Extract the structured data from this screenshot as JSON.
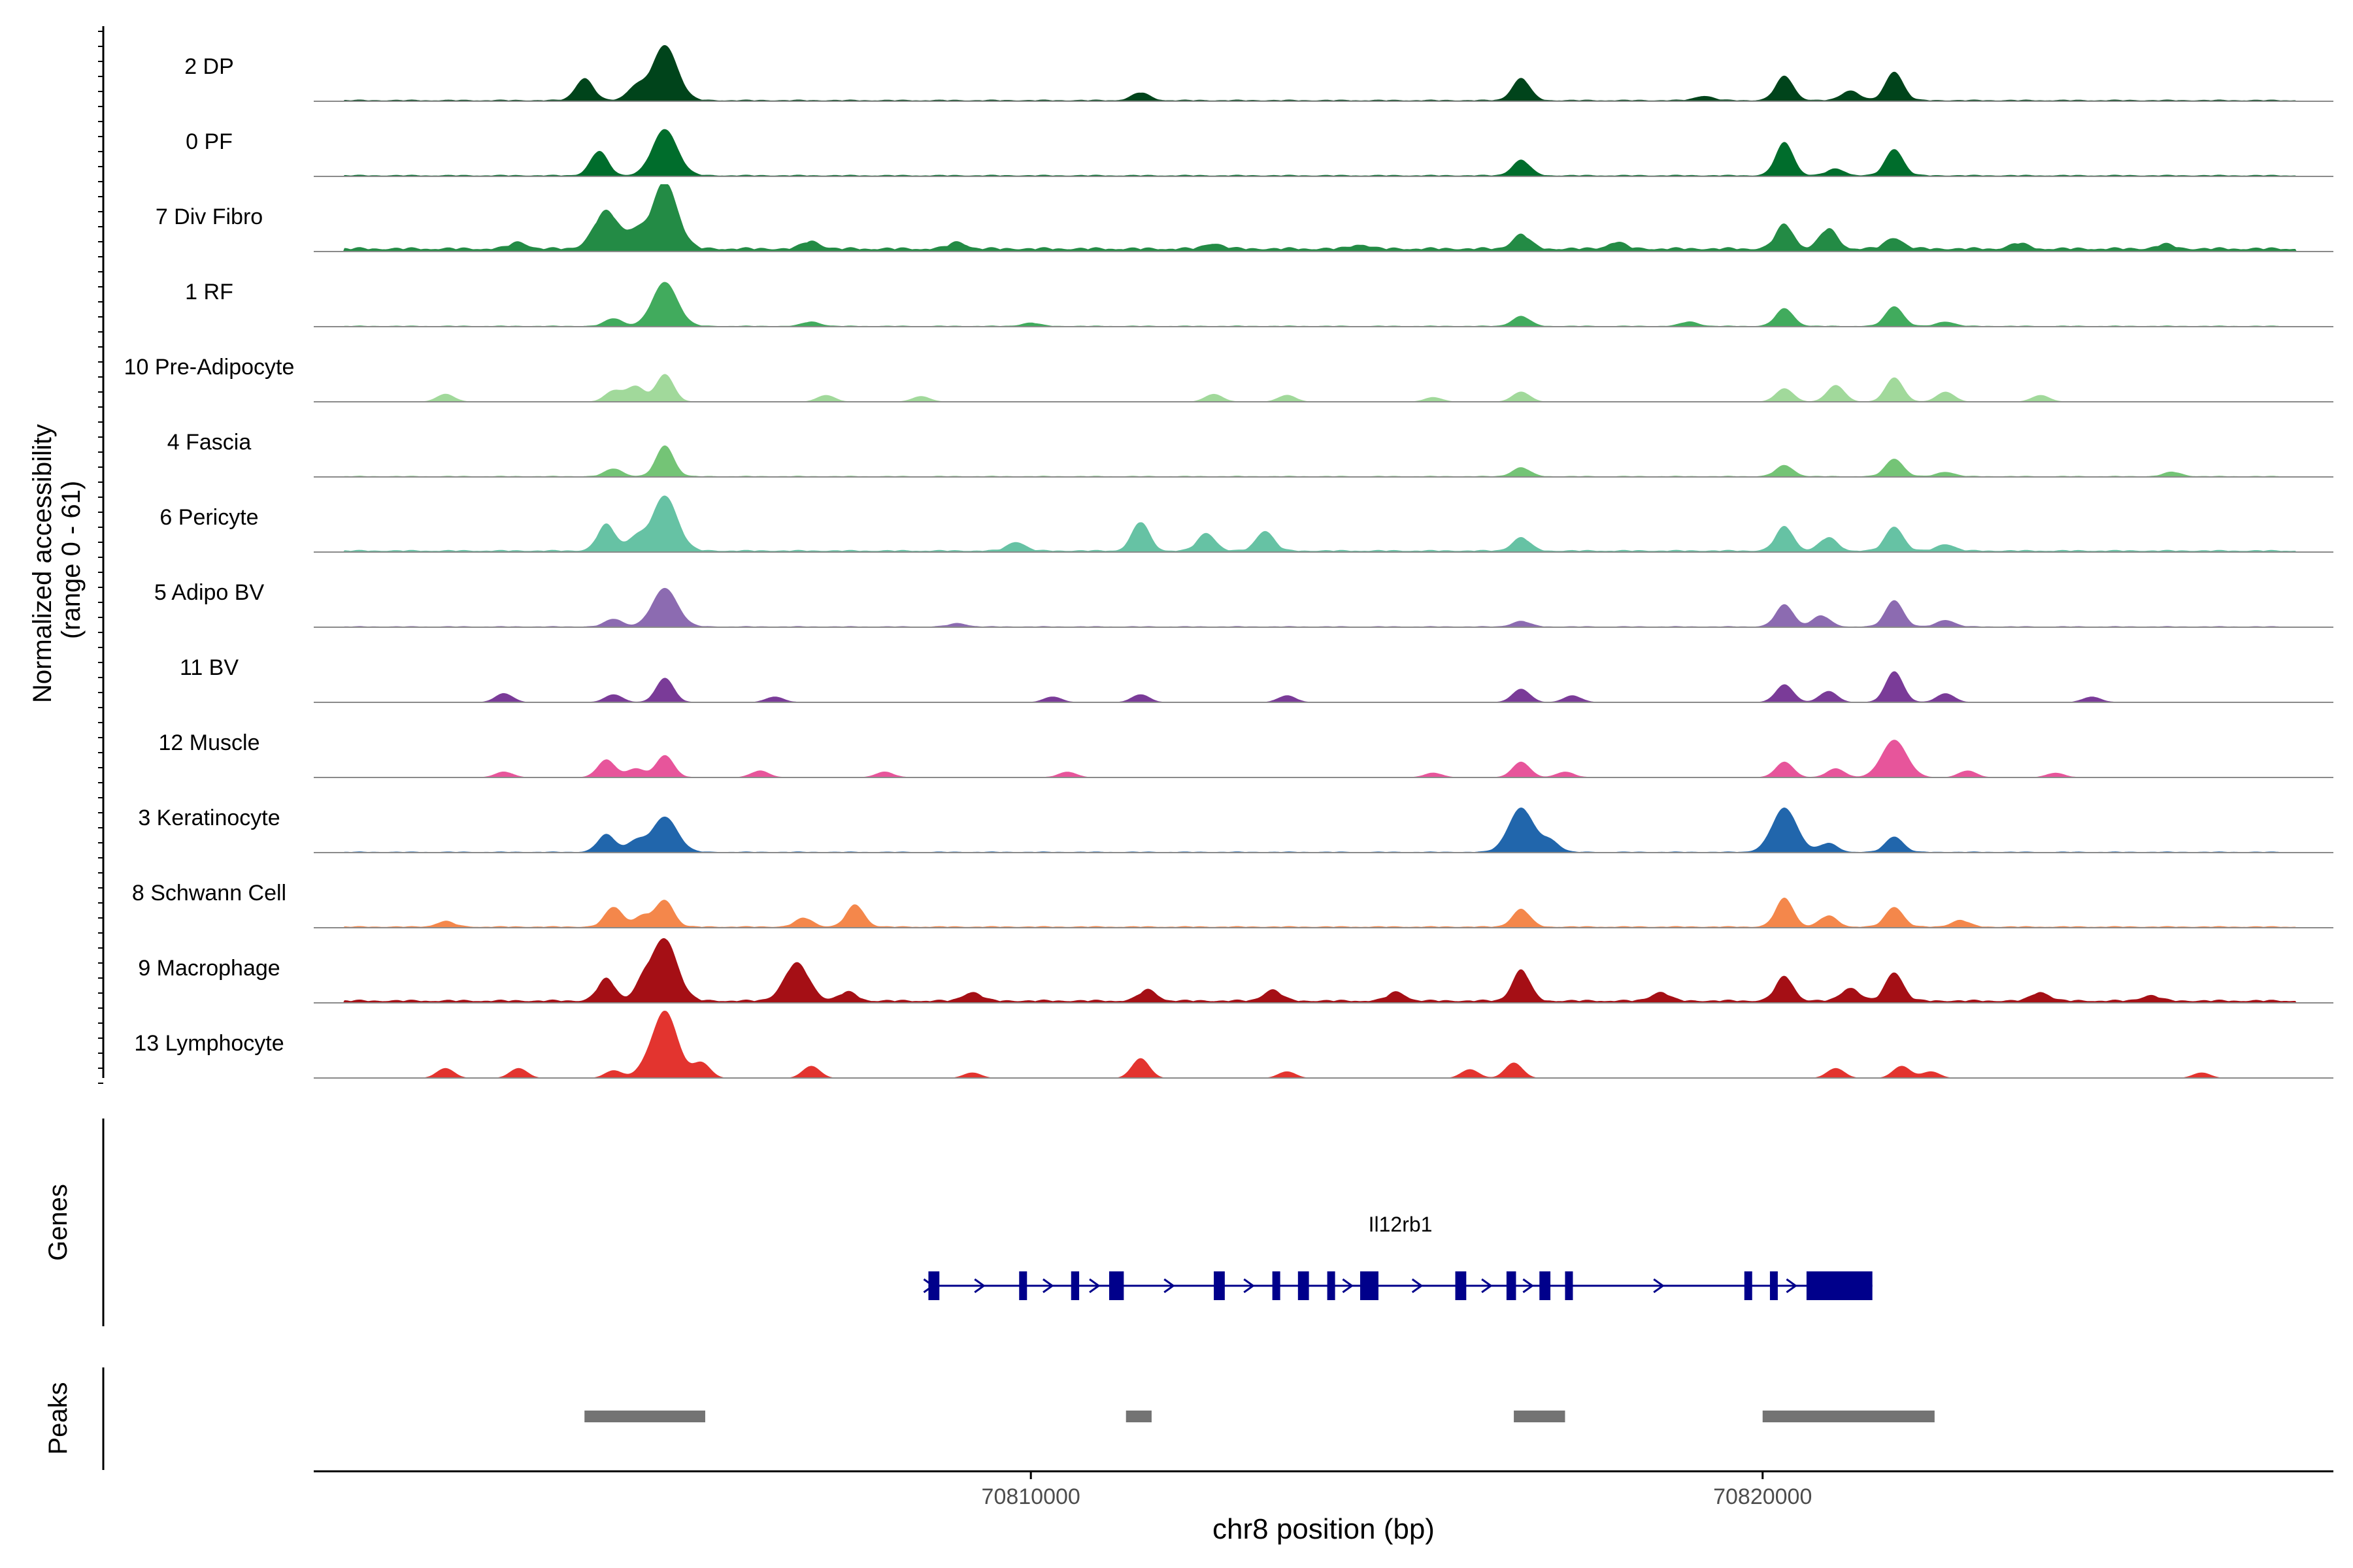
{
  "chart_data": {
    "type": "area",
    "chromosome": "chr8",
    "xlabel": "chr8 position (bp)",
    "ylabel_line1": "Normalized accessibility",
    "ylabel_line2": "(range 0 - 61)",
    "yrange": [
      0,
      61
    ],
    "xlim": [
      70800200,
      70827800
    ],
    "x_ticks": [
      70810000,
      70820000
    ],
    "x_tick_labels": [
      "70810000",
      "70820000"
    ],
    "tracks_label_genes": "Genes",
    "tracks_label_peaks": "Peaks",
    "series": [
      {
        "name": "2 DP",
        "color": "#00441b",
        "bg": 1.5,
        "peaks": [
          [
            70803900,
            20
          ],
          [
            70805000,
            50
          ],
          [
            70804600,
            12
          ],
          [
            70811500,
            7
          ],
          [
            70816700,
            20
          ],
          [
            70820300,
            22
          ],
          [
            70821800,
            26
          ],
          [
            70821200,
            9
          ],
          [
            70819200,
            4
          ]
        ]
      },
      {
        "name": "0 PF",
        "color": "#006d2c",
        "bg": 1.5,
        "peaks": [
          [
            70804100,
            22
          ],
          [
            70805000,
            42
          ],
          [
            70816700,
            14
          ],
          [
            70820300,
            30
          ],
          [
            70821800,
            24
          ],
          [
            70821000,
            6
          ]
        ]
      },
      {
        "name": "7 Div Fibro",
        "color": "#238b45",
        "bg": 4,
        "peaks": [
          [
            70804200,
            34
          ],
          [
            70805000,
            61
          ],
          [
            70804600,
            14
          ],
          [
            70803000,
            6
          ],
          [
            70807000,
            7
          ],
          [
            70809000,
            6
          ],
          [
            70812500,
            5
          ],
          [
            70814500,
            4
          ],
          [
            70816700,
            13
          ],
          [
            70818000,
            6
          ],
          [
            70820300,
            22
          ],
          [
            70820900,
            18
          ],
          [
            70821800,
            10
          ],
          [
            70823500,
            5
          ],
          [
            70825500,
            4
          ]
        ]
      },
      {
        "name": "1 RF",
        "color": "#41ab5d",
        "bg": 1,
        "peaks": [
          [
            70804300,
            7
          ],
          [
            70805000,
            40
          ],
          [
            70807000,
            4
          ],
          [
            70810000,
            3
          ],
          [
            70816700,
            9
          ],
          [
            70819000,
            4
          ],
          [
            70820300,
            16
          ],
          [
            70821800,
            18
          ],
          [
            70822500,
            4
          ]
        ]
      },
      {
        "name": "10 Pre-Adipocyte",
        "color": "#a1d99b",
        "bg": 0.3,
        "peaks": [
          [
            70802000,
            7
          ],
          [
            70804300,
            10
          ],
          [
            70805000,
            25
          ],
          [
            70804600,
            14
          ],
          [
            70807200,
            6
          ],
          [
            70808500,
            5
          ],
          [
            70812500,
            7
          ],
          [
            70813500,
            6
          ],
          [
            70815500,
            4
          ],
          [
            70816700,
            9
          ],
          [
            70820300,
            12
          ],
          [
            70821000,
            15
          ],
          [
            70821800,
            22
          ],
          [
            70822500,
            9
          ],
          [
            70823800,
            6
          ]
        ]
      },
      {
        "name": "4 Fascia",
        "color": "#74c476",
        "bg": 1,
        "peaks": [
          [
            70804300,
            7
          ],
          [
            70805000,
            28
          ],
          [
            70816700,
            8
          ],
          [
            70820300,
            10
          ],
          [
            70821800,
            16
          ],
          [
            70822500,
            4
          ],
          [
            70825600,
            4
          ]
        ]
      },
      {
        "name": "6 Pericyte",
        "color": "#66c2a4",
        "bg": 2,
        "peaks": [
          [
            70804200,
            24
          ],
          [
            70805000,
            50
          ],
          [
            70804600,
            12
          ],
          [
            70809800,
            8
          ],
          [
            70811500,
            26
          ],
          [
            70812400,
            16
          ],
          [
            70813200,
            18
          ],
          [
            70816700,
            12
          ],
          [
            70820300,
            22
          ],
          [
            70820900,
            12
          ],
          [
            70821800,
            22
          ],
          [
            70822500,
            6
          ]
        ]
      },
      {
        "name": "5 Adipo BV",
        "color": "#8c6bb1",
        "bg": 1,
        "peaks": [
          [
            70804300,
            7
          ],
          [
            70805000,
            35
          ],
          [
            70809000,
            3
          ],
          [
            70816700,
            5
          ],
          [
            70820300,
            20
          ],
          [
            70820800,
            10
          ],
          [
            70821800,
            24
          ],
          [
            70822500,
            6
          ]
        ]
      },
      {
        "name": "11 BV",
        "color": "#7a3b98",
        "bg": 0.4,
        "peaks": [
          [
            70802800,
            8
          ],
          [
            70804300,
            7
          ],
          [
            70805000,
            22
          ],
          [
            70806500,
            5
          ],
          [
            70810300,
            5
          ],
          [
            70811500,
            7
          ],
          [
            70813500,
            6
          ],
          [
            70816700,
            12
          ],
          [
            70817400,
            6
          ],
          [
            70820300,
            16
          ],
          [
            70820900,
            10
          ],
          [
            70821800,
            28
          ],
          [
            70822500,
            8
          ],
          [
            70824500,
            5
          ]
        ]
      },
      {
        "name": "12 Muscle",
        "color": "#e7559b",
        "bg": 0.4,
        "peaks": [
          [
            70802800,
            5
          ],
          [
            70804200,
            16
          ],
          [
            70805000,
            20
          ],
          [
            70804600,
            8
          ],
          [
            70806300,
            6
          ],
          [
            70808000,
            5
          ],
          [
            70810500,
            5
          ],
          [
            70815500,
            4
          ],
          [
            70816700,
            14
          ],
          [
            70817300,
            5
          ],
          [
            70820300,
            14
          ],
          [
            70821000,
            8
          ],
          [
            70821800,
            34
          ],
          [
            70822800,
            6
          ],
          [
            70824000,
            4
          ]
        ]
      },
      {
        "name": "3 Keratinocyte",
        "color": "#2166ac",
        "bg": 1,
        "peaks": [
          [
            70804200,
            16
          ],
          [
            70804600,
            10
          ],
          [
            70805000,
            32
          ],
          [
            70816700,
            40
          ],
          [
            70817100,
            10
          ],
          [
            70820300,
            40
          ],
          [
            70820900,
            8
          ],
          [
            70821800,
            14
          ]
        ]
      },
      {
        "name": "8 Schwann Cell",
        "color": "#f4874b",
        "bg": 1.5,
        "peaks": [
          [
            70802000,
            5
          ],
          [
            70804300,
            18
          ],
          [
            70805000,
            24
          ],
          [
            70804700,
            10
          ],
          [
            70807600,
            20
          ],
          [
            70806900,
            8
          ],
          [
            70816700,
            16
          ],
          [
            70820300,
            26
          ],
          [
            70820900,
            10
          ],
          [
            70821800,
            18
          ],
          [
            70822700,
            6
          ]
        ]
      },
      {
        "name": "9 Macrophage",
        "color": "#a50f15",
        "bg": 3,
        "peaks": [
          [
            70804200,
            20
          ],
          [
            70804700,
            15
          ],
          [
            70805000,
            56
          ],
          [
            70806800,
            34
          ],
          [
            70807500,
            8
          ],
          [
            70809200,
            8
          ],
          [
            70811600,
            10
          ],
          [
            70813300,
            10
          ],
          [
            70815000,
            8
          ],
          [
            70816700,
            28
          ],
          [
            70818600,
            8
          ],
          [
            70820300,
            22
          ],
          [
            70821200,
            12
          ],
          [
            70821800,
            26
          ],
          [
            70823800,
            8
          ],
          [
            70825300,
            5
          ]
        ]
      },
      {
        "name": "13 Lymphocyte",
        "color": "#e3342f",
        "bg": 0,
        "peaks": [
          [
            70802000,
            9
          ],
          [
            70803000,
            9
          ],
          [
            70804300,
            7
          ],
          [
            70804700,
            5
          ],
          [
            70805000,
            61
          ],
          [
            70805500,
            14
          ],
          [
            70807000,
            11
          ],
          [
            70809200,
            5
          ],
          [
            70811500,
            18
          ],
          [
            70813500,
            6
          ],
          [
            70816000,
            8
          ],
          [
            70816600,
            14
          ],
          [
            70821000,
            9
          ],
          [
            70821900,
            11
          ],
          [
            70822300,
            6
          ],
          [
            70826000,
            5
          ]
        ]
      }
    ],
    "genes": [
      {
        "name": "Il12rb1",
        "start": 70808600,
        "end": 70821500,
        "strand": "+",
        "exons": [
          [
            70808600,
            70808750
          ],
          [
            70809840,
            70809910
          ],
          [
            70810550,
            70810660
          ],
          [
            70811070,
            70811270
          ],
          [
            70812500,
            70812650
          ],
          [
            70813300,
            70813400
          ],
          [
            70813650,
            70813800
          ],
          [
            70814050,
            70814150
          ],
          [
            70814500,
            70814750
          ],
          [
            70815800,
            70815950
          ],
          [
            70816500,
            70816630
          ],
          [
            70816950,
            70817100
          ],
          [
            70817300,
            70817400
          ],
          [
            70819750,
            70819850
          ],
          [
            70820100,
            70820180
          ],
          [
            70820600,
            70821500
          ]
        ]
      }
    ],
    "peaks_track": [
      [
        70803900,
        70805550
      ],
      [
        70811300,
        70811650
      ],
      [
        70816600,
        70817300
      ],
      [
        70820000,
        70822350
      ]
    ]
  }
}
